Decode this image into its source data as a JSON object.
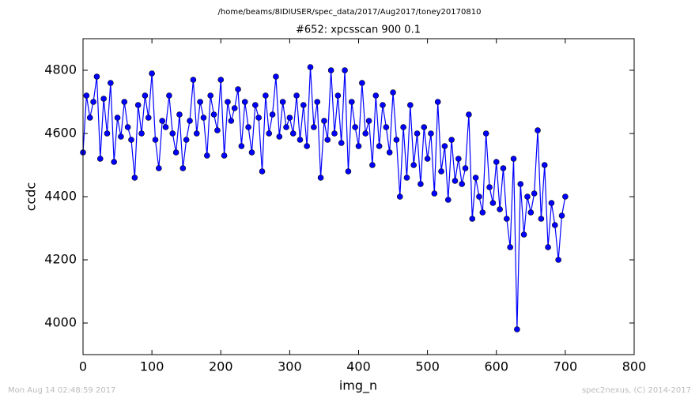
{
  "chart_data": {
    "type": "line",
    "suptitle": "/home/beams/8IDIUSER/spec_data/2017/Aug2017/toney20170810",
    "title": "#652: xpcsscan 900 0.1",
    "xlabel": "img_n",
    "ylabel": "ccdc",
    "footer_left": "Mon Aug 14 02:48:59 2017",
    "footer_right": "spec2nexus, (C) 2014-2017",
    "xlim": [
      0,
      800
    ],
    "xticks": [
      0,
      100,
      200,
      300,
      400,
      500,
      600,
      700,
      800
    ],
    "ylim": [
      3900,
      4900
    ],
    "yticks": [
      4000,
      4200,
      4400,
      4600,
      4800
    ],
    "color": "#0000ff",
    "x": [
      0,
      5,
      10,
      15,
      20,
      25,
      30,
      35,
      40,
      45,
      50,
      55,
      60,
      65,
      70,
      75,
      80,
      85,
      90,
      95,
      100,
      105,
      110,
      115,
      120,
      125,
      130,
      135,
      140,
      145,
      150,
      155,
      160,
      165,
      170,
      175,
      180,
      185,
      190,
      195,
      200,
      205,
      210,
      215,
      220,
      225,
      230,
      235,
      240,
      245,
      250,
      255,
      260,
      265,
      270,
      275,
      280,
      285,
      290,
      295,
      300,
      305,
      310,
      315,
      320,
      325,
      330,
      335,
      340,
      345,
      350,
      355,
      360,
      365,
      370,
      375,
      380,
      385,
      390,
      395,
      400,
      405,
      410,
      415,
      420,
      425,
      430,
      435,
      440,
      445,
      450,
      455,
      460,
      465,
      470,
      475,
      480,
      485,
      490,
      495,
      500,
      505,
      510,
      515,
      520,
      525,
      530,
      535,
      540,
      545,
      550,
      555,
      560,
      565,
      570,
      575,
      580,
      585,
      590,
      595,
      600,
      605,
      610,
      615,
      620,
      625,
      630,
      635,
      640,
      645,
      650,
      655,
      660,
      665,
      670,
      675,
      680,
      685,
      690,
      695,
      700
    ],
    "values": [
      4540,
      4720,
      4650,
      4700,
      4780,
      4520,
      4710,
      4600,
      4760,
      4510,
      4650,
      4590,
      4700,
      4620,
      4580,
      4460,
      4690,
      4600,
      4720,
      4650,
      4790,
      4580,
      4490,
      4640,
      4620,
      4720,
      4600,
      4540,
      4660,
      4490,
      4580,
      4640,
      4770,
      4600,
      4700,
      4650,
      4530,
      4720,
      4660,
      4610,
      4770,
      4530,
      4700,
      4640,
      4680,
      4740,
      4560,
      4700,
      4620,
      4540,
      4690,
      4650,
      4480,
      4720,
      4600,
      4660,
      4780,
      4590,
      4700,
      4620,
      4650,
      4600,
      4720,
      4580,
      4690,
      4560,
      4810,
      4620,
      4700,
      4460,
      4640,
      4580,
      4800,
      4600,
      4720,
      4570,
      4800,
      4480,
      4700,
      4620,
      4560,
      4760,
      4600,
      4640,
      4500,
      4720,
      4560,
      4690,
      4620,
      4540,
      4730,
      4580,
      4400,
      4620,
      4460,
      4690,
      4500,
      4600,
      4440,
      4620,
      4520,
      4600,
      4410,
      4700,
      4480,
      4560,
      4390,
      4580,
      4450,
      4520,
      4440,
      4490,
      4660,
      4330,
      4460,
      4400,
      4350,
      4600,
      4430,
      4380,
      4510,
      4360,
      4490,
      4330,
      4240,
      4520,
      3980,
      4440,
      4280,
      4400,
      4350,
      4410,
      4610,
      4330,
      4500,
      4240,
      4380,
      4310,
      4200,
      4340,
      4400
    ]
  }
}
